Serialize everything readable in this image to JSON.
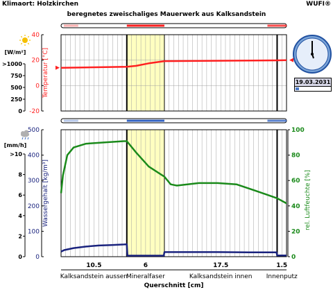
{
  "header": {
    "climate_location": "Klimaort: Holzkirchen",
    "title": "beregnetes zweischaliges Mauerwerk aus Kalksandstein",
    "brand": "WUFI®"
  },
  "clock": {
    "date": "19.03.2031",
    "progress": 0.1
  },
  "colors": {
    "temperature": "#ff2020",
    "water_content": "#1a237e",
    "humidity": "#1a8a1a",
    "insulation_fill": "#ffffc0",
    "grid": "#a0a0a0"
  },
  "icons": {
    "sun": "sun-icon",
    "rain": "rain-cloud-icon"
  },
  "chart_data": [
    {
      "type": "line",
      "title": "",
      "ylabel_left": "Temperatur [°C]",
      "ylim_left": [
        -20,
        40
      ],
      "yticks_left": [
        "40",
        "20",
        "0",
        "-20"
      ],
      "ylabel_left_outer": "[W/m²]",
      "yticks_left_outer": [
        ">1000",
        "750",
        "500",
        "250",
        "0"
      ],
      "series": [
        {
          "name": "Temperatur",
          "color": "#ff2020",
          "x": [
            0,
            10.5,
            12,
            14,
            16.5,
            34.5,
            36
          ],
          "y": [
            14.0,
            14.8,
            15.5,
            17.5,
            19.2,
            19.8,
            20.0
          ]
        }
      ]
    },
    {
      "type": "line",
      "title": "",
      "ylabel_left": "Wassergehalt [kg/m³]",
      "ylim_left": [
        0,
        500
      ],
      "yticks_left": [
        "500",
        "400",
        "300",
        "200",
        "100",
        "0"
      ],
      "ylabel_left_outer": "[mm/h]",
      "yticks_left_outer": [
        ">10",
        "8",
        "6",
        "4",
        "2",
        "0"
      ],
      "ylabel_right": "rel. Luftfeuchte [%]",
      "ylim_right": [
        0,
        100
      ],
      "yticks_right": [
        "100",
        "80",
        "60",
        "40",
        "20",
        "0"
      ],
      "xlabel": "Querschnitt [cm]",
      "layers": [
        {
          "thickness": "10.5",
          "name": "Kalksandstein aussen"
        },
        {
          "thickness": "6",
          "name": "Mineralfaser"
        },
        {
          "thickness": "17.5",
          "name": "Kalksandstein innen"
        },
        {
          "thickness": "1.5",
          "name": "Innenputz"
        }
      ],
      "series": [
        {
          "name": "Wassergehalt",
          "color": "#1a237e",
          "axis": "left",
          "x": [
            0,
            0.5,
            2,
            4,
            6,
            8,
            10,
            10.5,
            10.6,
            16.4,
            16.5,
            20,
            25,
            30,
            34.4,
            34.5,
            36
          ],
          "y": [
            20,
            26,
            34,
            40,
            44,
            46,
            48,
            49,
            4,
            4,
            18,
            18,
            18,
            17,
            17,
            5,
            5
          ]
        },
        {
          "name": "rel. Luftfeuchte",
          "color": "#1a8a1a",
          "axis": "right",
          "x": [
            0,
            0.3,
            1,
            2,
            4,
            7,
            10,
            10.5,
            12,
            14,
            16.5,
            17.5,
            18.5,
            22,
            25,
            28,
            31,
            34.5,
            36
          ],
          "y": [
            50,
            64,
            80,
            86,
            89,
            90,
            91,
            91,
            82,
            71,
            63,
            57,
            56,
            58,
            58,
            57,
            52,
            46,
            42
          ]
        }
      ]
    }
  ]
}
